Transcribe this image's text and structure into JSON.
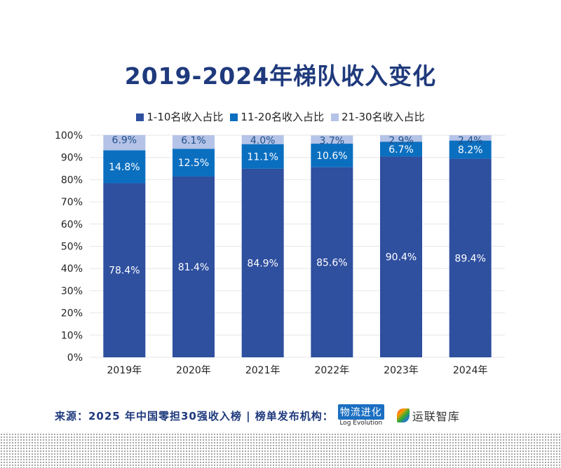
{
  "chart_data": {
    "type": "bar",
    "stacked": true,
    "title": "2019-2024年梯队收入变化",
    "categories": [
      "2019年",
      "2020年",
      "2021年",
      "2022年",
      "2023年",
      "2024年"
    ],
    "series": [
      {
        "name": "1-10名收入占比",
        "values": [
          78.4,
          81.4,
          84.9,
          85.6,
          90.4,
          89.4
        ],
        "labels": [
          "78.4%",
          "81.4%",
          "84.9%",
          "85.6%",
          "90.4%",
          "89.4%"
        ],
        "color": "#2f4f9f"
      },
      {
        "name": "11-20名收入占比",
        "values": [
          14.8,
          12.5,
          11.1,
          10.6,
          6.7,
          8.2
        ],
        "labels": [
          "14.8%",
          "12.5%",
          "11.1%",
          "10.6%",
          "6.7%",
          "8.2%"
        ],
        "color": "#0b6fc0"
      },
      {
        "name": "21-30名收入占比",
        "values": [
          6.9,
          6.1,
          4.0,
          3.7,
          2.9,
          2.4
        ],
        "labels": [
          "6.9%",
          "6.1%",
          "4.0%",
          "3.7%",
          "2.9%",
          "2.4%"
        ],
        "color": "#b4c3e7"
      }
    ],
    "yticks": [
      "0%",
      "10%",
      "20%",
      "30%",
      "40%",
      "50%",
      "60%",
      "70%",
      "80%",
      "90%",
      "100%"
    ],
    "ylim": [
      0,
      100
    ],
    "grid": true,
    "legend": "top"
  },
  "footer": {
    "source": "来源：2025 年中国零担30强收入榜  |  榜单发布机构：",
    "logo1_main": "物流进化",
    "logo1_sub": "Log Evolution",
    "logo2": "运联智库"
  }
}
